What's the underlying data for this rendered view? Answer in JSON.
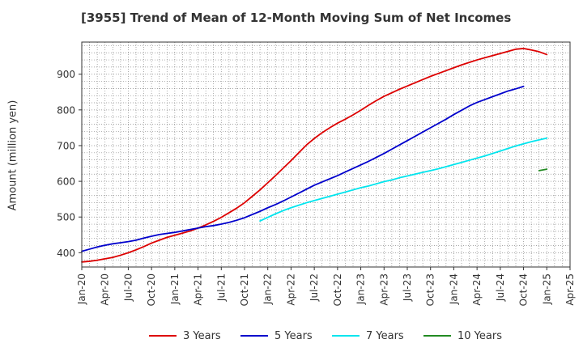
{
  "chart_data": {
    "type": "line",
    "title": "[3955]  Trend of Mean of 12-Month Moving Sum of Net Incomes",
    "xlabel": "",
    "ylabel": "Amount (million yen)",
    "ylim": [
      360,
      990
    ],
    "y_ticks": [
      400,
      500,
      600,
      700,
      800,
      900
    ],
    "x_tick_labels": [
      "Jan-20",
      "Apr-20",
      "Jul-20",
      "Oct-20",
      "Jan-21",
      "Apr-21",
      "Jul-21",
      "Oct-21",
      "Jan-22",
      "Apr-22",
      "Jul-22",
      "Oct-22",
      "Jan-23",
      "Apr-23",
      "Jul-23",
      "Oct-23",
      "Jan-24",
      "Apr-24",
      "Jul-24",
      "Oct-24",
      "Jan-25",
      "Apr-25"
    ],
    "grid": true,
    "legend_position": "bottom",
    "series": [
      {
        "name": "3 Years",
        "color": "#dd0000",
        "start": "Jan-20",
        "values": [
          374,
          376,
          379,
          383,
          387,
          393,
          400,
          408,
          417,
          427,
          435,
          443,
          449,
          455,
          461,
          469,
          478,
          488,
          499,
          512,
          525,
          540,
          558,
          576,
          596,
          616,
          637,
          658,
          680,
          702,
          720,
          736,
          750,
          763,
          774,
          786,
          799,
          813,
          826,
          838,
          848,
          858,
          867,
          876,
          885,
          894,
          902,
          910,
          918,
          926,
          933,
          940,
          946,
          952,
          958,
          964,
          970,
          972,
          968,
          963,
          955
        ]
      },
      {
        "name": "5 Years",
        "color": "#0000cc",
        "start": "Jan-20",
        "values": [
          404,
          410,
          416,
          421,
          425,
          428,
          431,
          435,
          441,
          446,
          451,
          454,
          457,
          461,
          465,
          469,
          473,
          476,
          480,
          485,
          491,
          498,
          507,
          516,
          526,
          535,
          545,
          556,
          567,
          578,
          589,
          598,
          607,
          616,
          626,
          636,
          646,
          656,
          667,
          678,
          690,
          702,
          714,
          726,
          738,
          750,
          762,
          774,
          787,
          799,
          811,
          821,
          829,
          837,
          845,
          853,
          859,
          866
        ]
      },
      {
        "name": "7 Years",
        "color": "#00e5ee",
        "start": "Dec-21",
        "values": [
          489,
          499,
          509,
          518,
          526,
          533,
          540,
          546,
          552,
          558,
          564,
          570,
          576,
          582,
          587,
          593,
          599,
          604,
          610,
          615,
          620,
          625,
          630,
          635,
          641,
          647,
          653,
          659,
          665,
          671,
          678,
          685,
          692,
          699,
          705,
          711,
          716,
          721
        ]
      },
      {
        "name": "10 Years",
        "color": "#228b22",
        "start": "Dec-24",
        "values": [
          630,
          634
        ]
      }
    ]
  }
}
